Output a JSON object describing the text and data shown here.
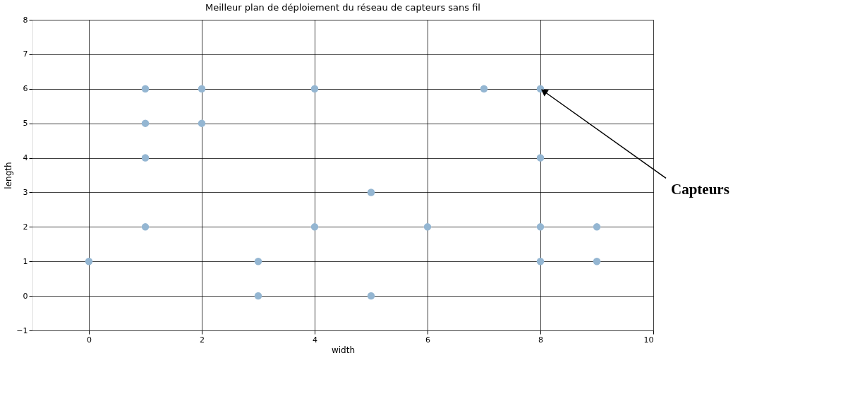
{
  "chart_data": {
    "type": "scatter",
    "title": "Meilleur plan de déploiement du réseau de capteurs sans fil",
    "xlabel": "width",
    "ylabel": "length",
    "series": [
      {
        "color": "#94b6d2",
        "x": [
          0,
          1,
          1,
          1,
          1,
          2,
          2,
          3,
          3,
          4,
          4,
          5,
          5,
          6,
          7,
          8,
          8,
          8,
          8,
          9,
          9
        ],
        "values": [
          1,
          6,
          5,
          4,
          2,
          6,
          5,
          1,
          0,
          6,
          2,
          3,
          0,
          2,
          6,
          6,
          4,
          2,
          1,
          2,
          1
        ]
      }
    ],
    "xlim": [
      -1,
      10
    ],
    "ylim": [
      -1,
      8
    ],
    "xticks": [
      0,
      2,
      4,
      6,
      8,
      10
    ],
    "yticks": [
      -1,
      0,
      1,
      2,
      3,
      4,
      5,
      6,
      7,
      8
    ],
    "grid": true,
    "annotations": [
      {
        "text": "Capteurs",
        "x": 8,
        "y": 6
      }
    ]
  }
}
